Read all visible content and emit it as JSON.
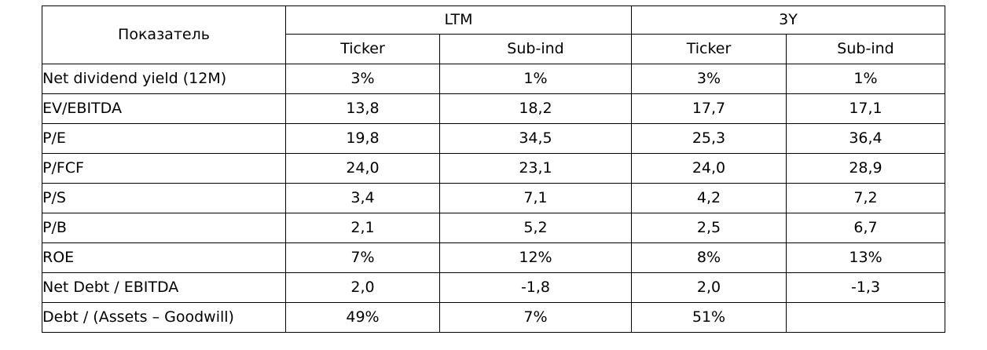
{
  "table": {
    "header": {
      "indicator": "Показатель",
      "groups": [
        "LTM",
        "3Y"
      ],
      "subcolumns": [
        "Ticker",
        "Sub-ind",
        "Ticker",
        "Sub-ind"
      ]
    },
    "rows": [
      {
        "label": "Net dividend yield (12M)",
        "values": [
          "3%",
          "1%",
          "3%",
          "1%"
        ]
      },
      {
        "label": "EV/EBITDA",
        "values": [
          "13,8",
          "18,2",
          "17,7",
          "17,1"
        ]
      },
      {
        "label": "P/E",
        "values": [
          "19,8",
          "34,5",
          "25,3",
          "36,4"
        ]
      },
      {
        "label": "P/FCF",
        "values": [
          "24,0",
          "23,1",
          "24,0",
          "28,9"
        ]
      },
      {
        "label": "P/S",
        "values": [
          "3,4",
          "7,1",
          "4,2",
          "7,2"
        ]
      },
      {
        "label": "P/B",
        "values": [
          "2,1",
          "5,2",
          "2,5",
          "6,7"
        ]
      },
      {
        "label": "ROE",
        "values": [
          "7%",
          "12%",
          "8%",
          "13%"
        ]
      },
      {
        "label": "Net Debt / EBITDA",
        "values": [
          "2,0",
          "-1,8",
          "2,0",
          "-1,3"
        ]
      },
      {
        "label": "Debt / (Assets – Goodwill)",
        "values": [
          "49%",
          "7%",
          "51%",
          ""
        ]
      }
    ]
  }
}
